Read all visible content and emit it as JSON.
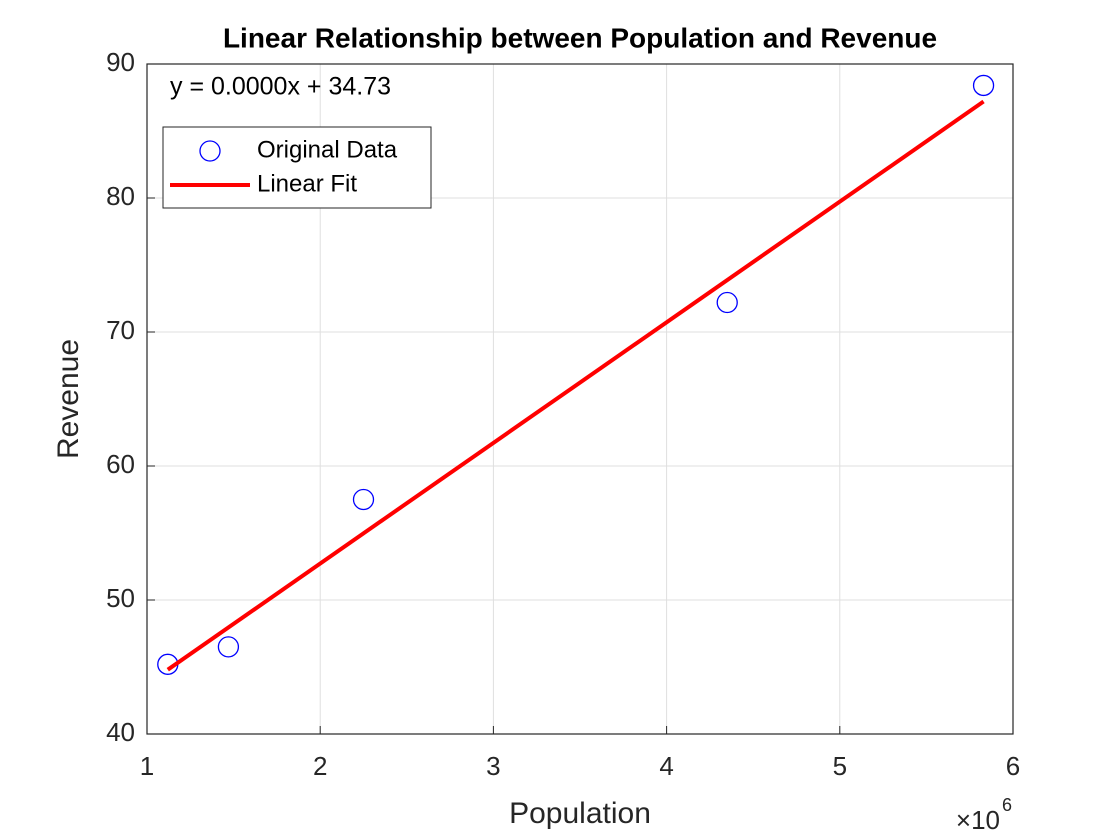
{
  "chart_data": {
    "type": "scatter",
    "title": "Linear Relationship between Population and Revenue",
    "xlabel": "Population",
    "ylabel": "Revenue",
    "annotation": "y = 0.0000x + 34.73",
    "x_multiplier": {
      "base": "×10",
      "exponent": "6"
    },
    "series": [
      {
        "name": "Original Data",
        "type": "scatter",
        "color": "#0000ff",
        "x": [
          1120000,
          1470000,
          2250000,
          4350000,
          5830000
        ],
        "values": [
          45.2,
          46.5,
          57.5,
          72.2,
          88.4
        ]
      },
      {
        "name": "Linear Fit",
        "type": "line",
        "color": "#ff0000",
        "x": [
          1120000,
          5830000
        ],
        "values": [
          44.8,
          87.2
        ]
      }
    ],
    "xlim": [
      1000000,
      6000000
    ],
    "xticks": [
      {
        "value": 1000000,
        "label": "1"
      },
      {
        "value": 2000000,
        "label": "2"
      },
      {
        "value": 3000000,
        "label": "3"
      },
      {
        "value": 4000000,
        "label": "4"
      },
      {
        "value": 5000000,
        "label": "5"
      },
      {
        "value": 6000000,
        "label": "6"
      }
    ],
    "ylim": [
      40,
      90
    ],
    "yticks": [
      40,
      50,
      60,
      70,
      80,
      90
    ],
    "grid": true,
    "legend": "northwest"
  }
}
